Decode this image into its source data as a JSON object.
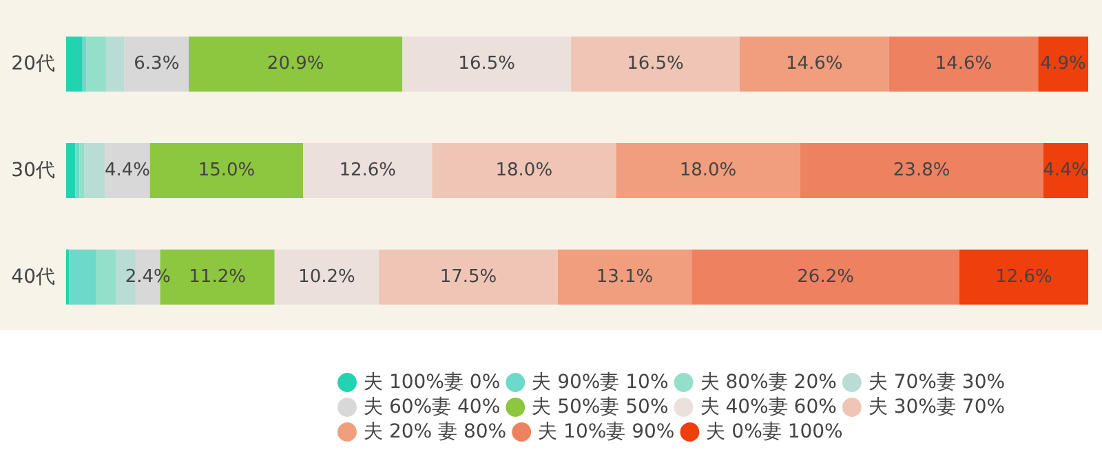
{
  "chart_data": {
    "type": "bar",
    "orientation": "horizontal",
    "stacked": true,
    "categories": [
      "20代",
      "30代",
      "40代"
    ],
    "xlim": [
      0,
      100
    ],
    "tick_labels": "y",
    "legend": "bottom right",
    "series": [
      {
        "name": "夫 100%妻 0%",
        "color": "#22d3b0",
        "values": [
          1.6,
          0.9,
          0.3
        ],
        "value_labels": [
          null,
          null,
          null
        ]
      },
      {
        "name": "夫 90%妻 10%",
        "color": "#6dd9cb",
        "values": [
          0.4,
          0.4,
          2.6
        ],
        "value_labels": [
          null,
          null,
          null
        ]
      },
      {
        "name": "夫 80%妻 20%",
        "color": "#93dfca",
        "values": [
          1.9,
          0.5,
          2.0
        ],
        "value_labels": [
          null,
          null,
          null
        ]
      },
      {
        "name": "夫 70%妻 30%",
        "color": "#b9dcd5",
        "values": [
          1.8,
          2.0,
          1.9
        ],
        "value_labels": [
          null,
          null,
          null
        ]
      },
      {
        "name": "夫 60%妻 40%",
        "color": "#d8d8d8",
        "values": [
          6.3,
          4.4,
          2.4
        ],
        "value_labels": [
          "6.3%",
          "4.4%",
          "2.4%"
        ]
      },
      {
        "name": "夫 50%妻 50%",
        "color": "#8dc63f",
        "values": [
          20.9,
          15.0,
          11.2
        ],
        "value_labels": [
          "20.9%",
          "15.0%",
          "11.2%"
        ]
      },
      {
        "name": "夫 40%妻 60%",
        "color": "#ece0dc",
        "values": [
          16.5,
          12.6,
          10.2
        ],
        "value_labels": [
          "16.5%",
          "12.6%",
          "10.2%"
        ]
      },
      {
        "name": "夫 30%妻 70%",
        "color": "#efc5b5",
        "values": [
          16.5,
          18.0,
          17.5
        ],
        "value_labels": [
          "16.5%",
          "18.0%",
          "17.5%"
        ]
      },
      {
        "name": "夫 20% 妻 80%",
        "color": "#f09e7e",
        "values": [
          14.6,
          18.0,
          13.1
        ],
        "value_labels": [
          "14.6%",
          "18.0%",
          "13.1%"
        ]
      },
      {
        "name": "夫 10%妻 90%",
        "color": "#ee8160",
        "values": [
          14.6,
          23.8,
          26.2
        ],
        "value_labels": [
          "14.6%",
          "23.8%",
          "26.2%"
        ]
      },
      {
        "name": "夫 0%妻 100%",
        "color": "#ee3f0c",
        "values": [
          4.9,
          4.4,
          12.6
        ],
        "value_labels": [
          "4.9%",
          "4.4%",
          "12.6%"
        ]
      }
    ]
  }
}
